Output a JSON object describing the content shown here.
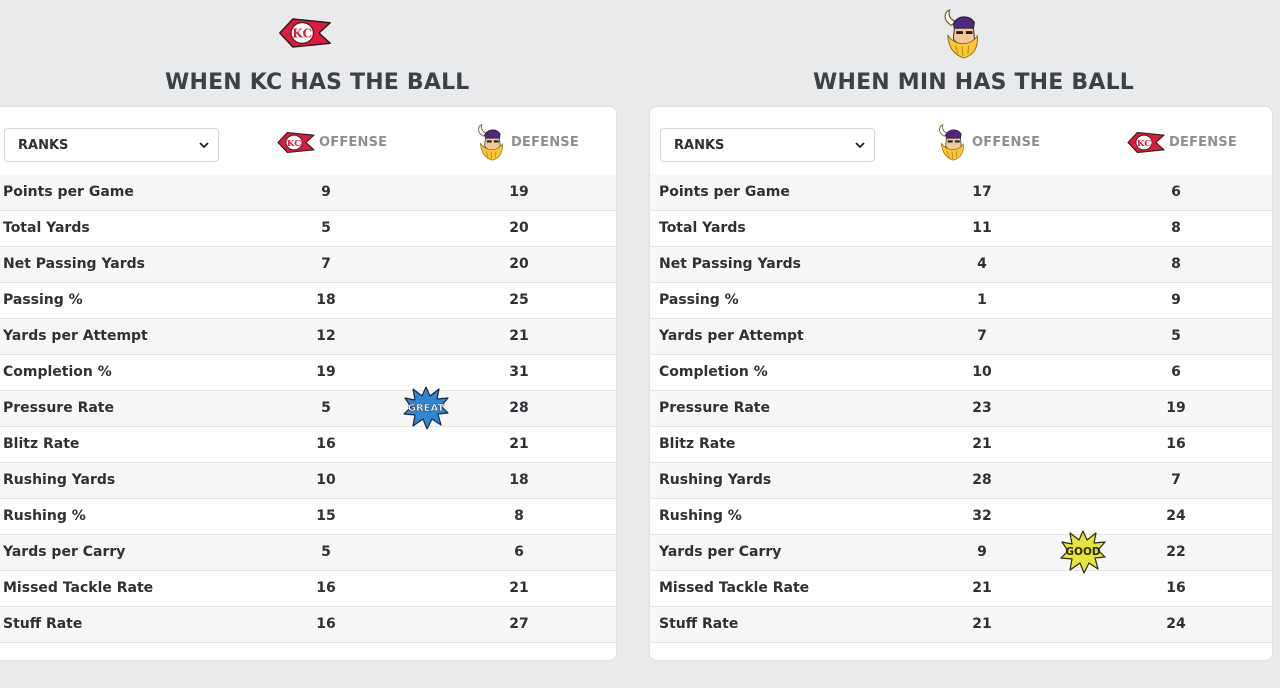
{
  "colors": {
    "background": "#e9eaec",
    "panel": "#ffffff",
    "row_alt": "#f7f7f8",
    "text": "#2e3136",
    "header_text": "#8b8f95",
    "kc_red": "#e31837",
    "min_purple": "#4f2683",
    "min_gold": "#ffc62f",
    "great_badge": "#2f86d6",
    "good_badge": "#e4e63a"
  },
  "left": {
    "title": "WHEN KC HAS THE BALL",
    "top_logo": "kc-chiefs-logo",
    "select_label": "RANKS",
    "offense": {
      "logo": "kc-chiefs-logo",
      "label": "OFFENSE"
    },
    "defense": {
      "logo": "min-vikings-logo",
      "label": "DEFENSE"
    },
    "rows": [
      {
        "metric": "Points per Game",
        "offense": "9",
        "defense": "19"
      },
      {
        "metric": "Total Yards",
        "offense": "5",
        "defense": "20"
      },
      {
        "metric": "Net Passing Yards",
        "offense": "7",
        "defense": "20"
      },
      {
        "metric": "Passing %",
        "offense": "18",
        "defense": "25"
      },
      {
        "metric": "Yards per Attempt",
        "offense": "12",
        "defense": "21"
      },
      {
        "metric": "Completion %",
        "offense": "19",
        "defense": "31"
      },
      {
        "metric": "Pressure Rate",
        "offense": "5",
        "defense": "28"
      },
      {
        "metric": "Blitz Rate",
        "offense": "16",
        "defense": "21"
      },
      {
        "metric": "Rushing Yards",
        "offense": "10",
        "defense": "18"
      },
      {
        "metric": "Rushing %",
        "offense": "15",
        "defense": "8"
      },
      {
        "metric": "Yards per Carry",
        "offense": "5",
        "defense": "6"
      },
      {
        "metric": "Missed Tackle Rate",
        "offense": "16",
        "defense": "21"
      },
      {
        "metric": "Stuff Rate",
        "offense": "16",
        "defense": "27"
      }
    ],
    "badge": {
      "text": "GREAT",
      "row": "Pressure Rate"
    }
  },
  "right": {
    "title": "WHEN MIN HAS THE BALL",
    "top_logo": "min-vikings-logo",
    "select_label": "RANKS",
    "offense": {
      "logo": "min-vikings-logo",
      "label": "OFFENSE"
    },
    "defense": {
      "logo": "kc-chiefs-logo",
      "label": "DEFENSE"
    },
    "rows": [
      {
        "metric": "Points per Game",
        "offense": "17",
        "defense": "6"
      },
      {
        "metric": "Total Yards",
        "offense": "11",
        "defense": "8"
      },
      {
        "metric": "Net Passing Yards",
        "offense": "4",
        "defense": "8"
      },
      {
        "metric": "Passing %",
        "offense": "1",
        "defense": "9"
      },
      {
        "metric": "Yards per Attempt",
        "offense": "7",
        "defense": "5"
      },
      {
        "metric": "Completion %",
        "offense": "10",
        "defense": "6"
      },
      {
        "metric": "Pressure Rate",
        "offense": "23",
        "defense": "19"
      },
      {
        "metric": "Blitz Rate",
        "offense": "21",
        "defense": "16"
      },
      {
        "metric": "Rushing Yards",
        "offense": "28",
        "defense": "7"
      },
      {
        "metric": "Rushing %",
        "offense": "32",
        "defense": "24"
      },
      {
        "metric": "Yards per Carry",
        "offense": "9",
        "defense": "22"
      },
      {
        "metric": "Missed Tackle Rate",
        "offense": "21",
        "defense": "16"
      },
      {
        "metric": "Stuff Rate",
        "offense": "21",
        "defense": "24"
      }
    ],
    "badge": {
      "text": "GOOD",
      "row": "Yards per Carry"
    }
  }
}
